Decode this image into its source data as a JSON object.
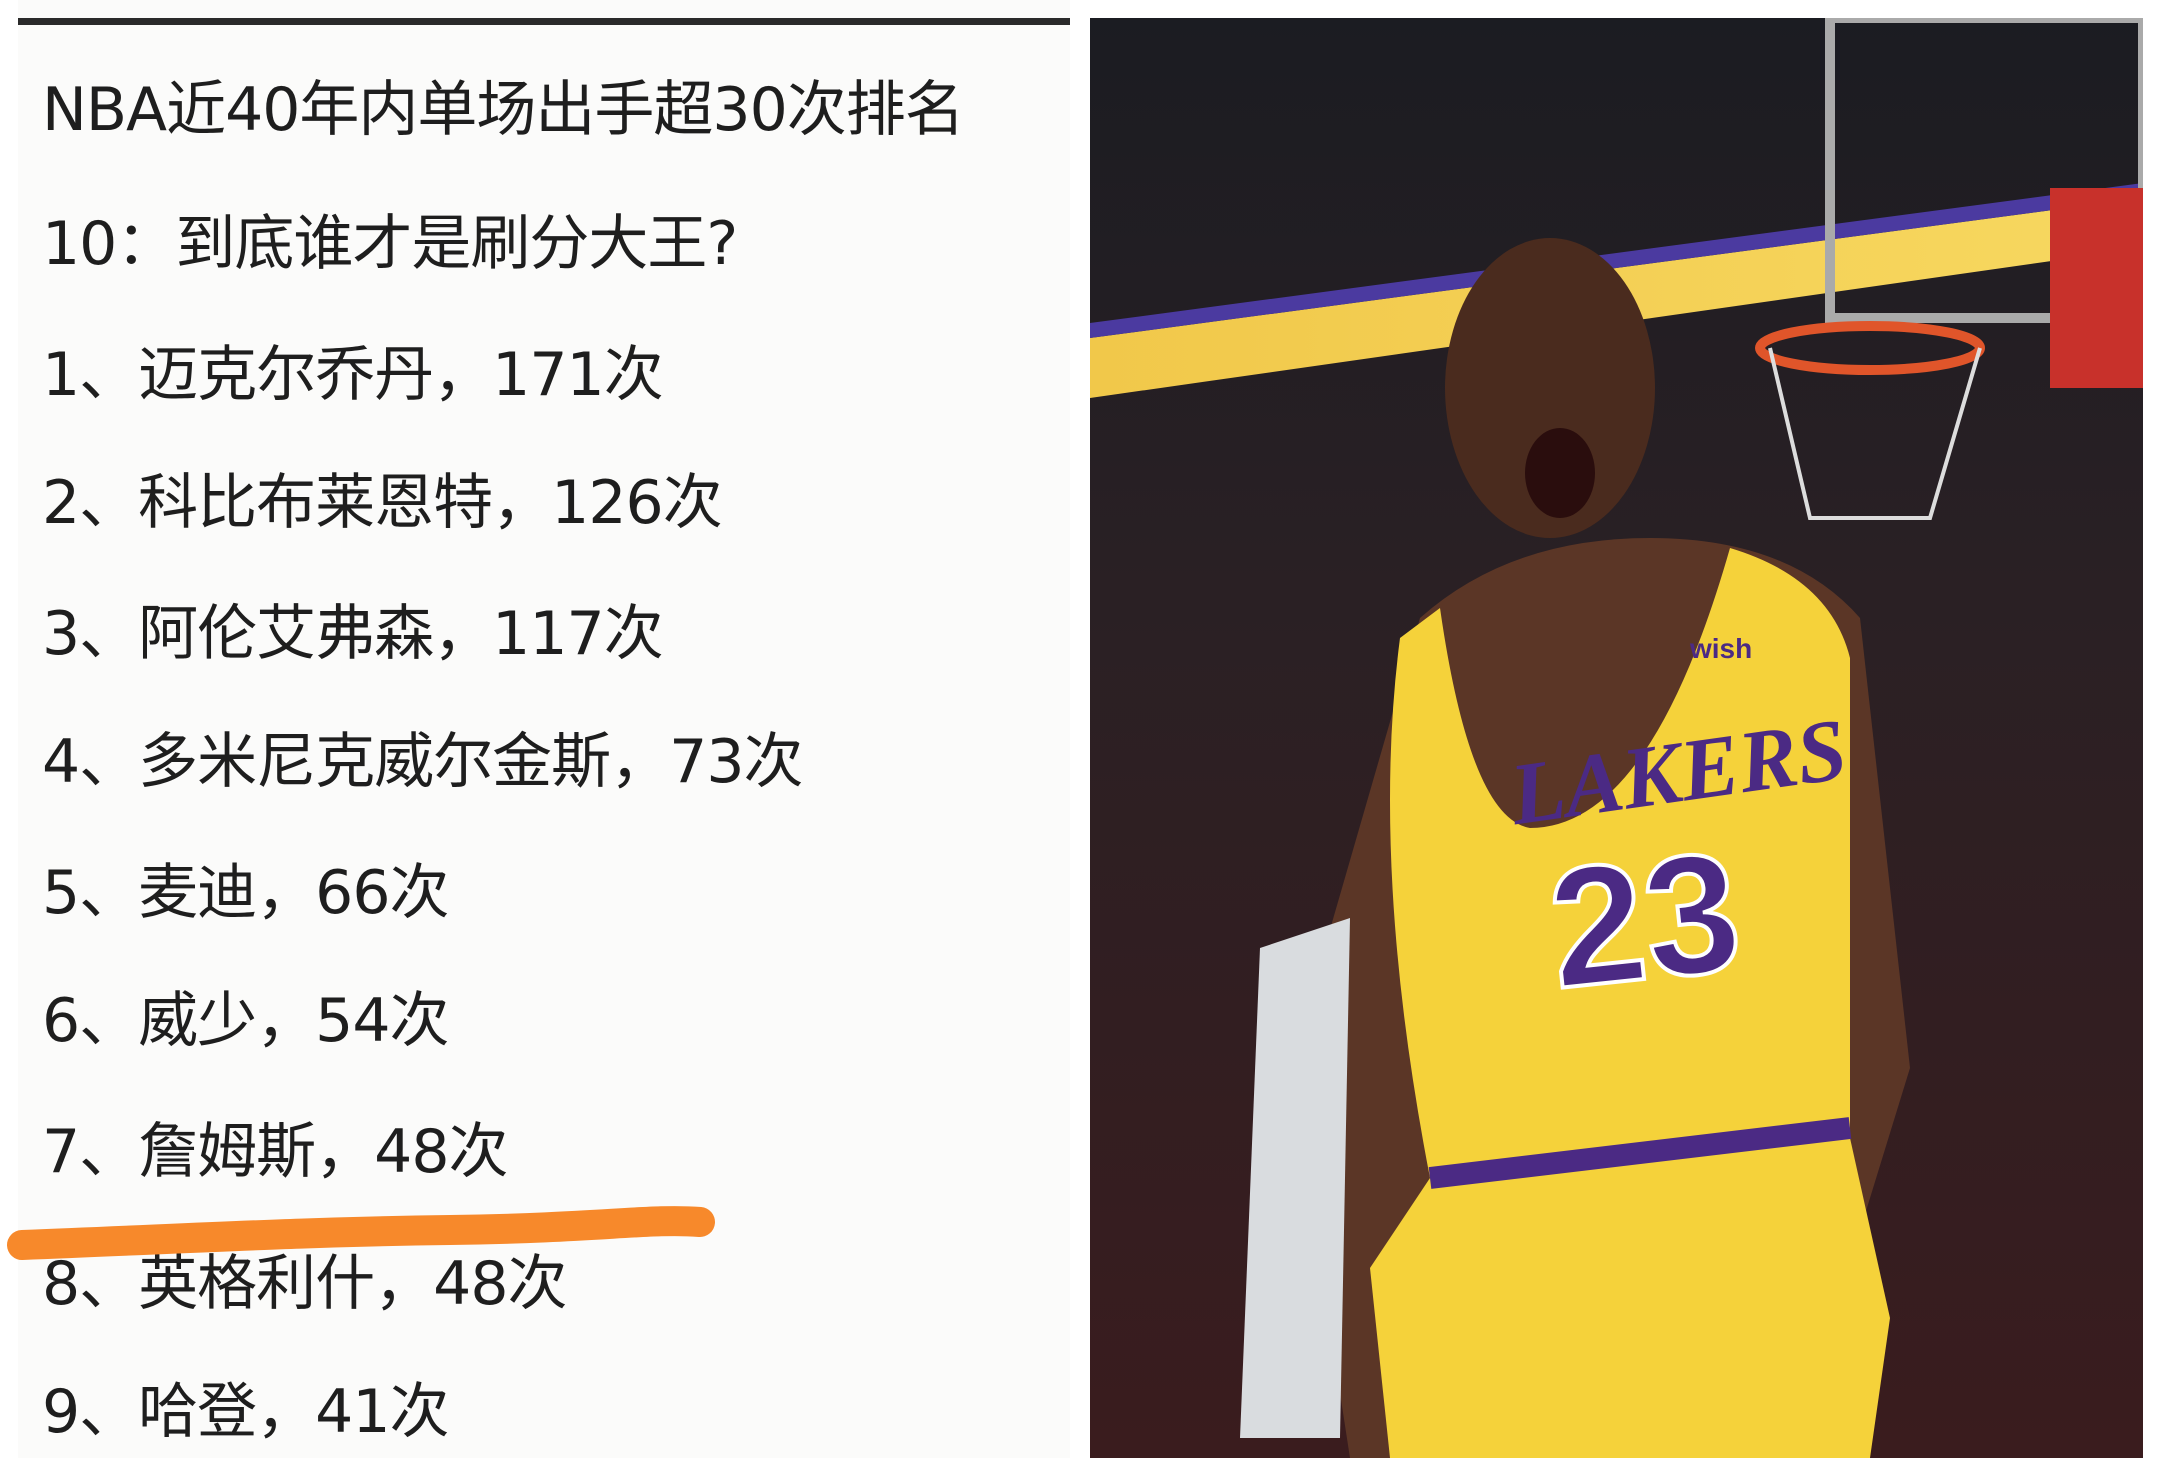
{
  "title_line1": "NBA近40年内单场出手超30次排名",
  "title_line2": "10：到底谁才是刷分大王?",
  "ranking": [
    {
      "text": "1、迈克尔乔丹，171次"
    },
    {
      "text": "2、科比布莱恩特，126次"
    },
    {
      "text": "3、阿伦艾弗森，117次"
    },
    {
      "text": "4、多米尼克威尔金斯，73次"
    },
    {
      "text": "5、麦迪，66次"
    },
    {
      "text": "6、威少，54次"
    },
    {
      "text": "7、詹姆斯，48次"
    },
    {
      "text": "8、英格利什，48次"
    },
    {
      "text": "9、哈登，41次"
    }
  ],
  "highlight_color": "#f7892b",
  "photo": {
    "jersey_text": "LAKERS",
    "jersey_number": "23",
    "sponsor": "wish",
    "jersey_color": "#f5d23a",
    "trim_color": "#4b2a84"
  }
}
